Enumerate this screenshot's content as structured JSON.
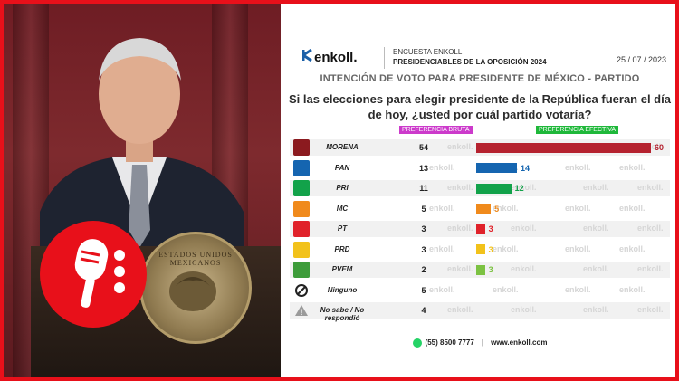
{
  "header": {
    "logo_text": "enkoll.",
    "line1": "ENCUESTA ENKOLL",
    "line2": "PRESIDENCIABLES DE LA OPOSICIÓN 2024",
    "date": "25 / 07 / 2023"
  },
  "seal_text": "ESTADOS UNIDOS MEXICANOS",
  "watermark": "enkoll.",
  "legend": {
    "bruta": "PREFERENCIA BRUTA",
    "efectiva": "PREFERENCIA EFECTIVA"
  },
  "footer": {
    "phone": "(55) 8500 7777",
    "url": "www.enkoll.com"
  },
  "colors": {
    "frame": "#e8101a",
    "morena": "#b5222f",
    "pan": "#1565b0",
    "pri": "#12a24a",
    "mc": "#f08a1c",
    "pt": "#e0222a",
    "prd": "#f2c21b",
    "pvem": "#7cc242"
  },
  "chart_data": {
    "type": "bar",
    "title": "INTENCIÓN DE VOTO PARA PRESIDENTE DE MÉXICO - PARTIDO",
    "subtitle": "Si las elecciones para elegir presidente de la República fueran el día de hoy, ¿usted por cuál partido votaría?",
    "categories": [
      "MORENA",
      "PAN",
      "PRI",
      "MC",
      "PT",
      "PRD",
      "PVEM",
      "Ninguno",
      "No sabe / No respondió"
    ],
    "series": [
      {
        "name": "PREFERENCIA BRUTA",
        "values": [
          54,
          13,
          11,
          5,
          3,
          3,
          2,
          5,
          4
        ]
      },
      {
        "name": "PREFERENCIA EFECTIVA",
        "values": [
          60,
          14,
          12,
          5,
          3,
          3,
          3,
          null,
          null
        ]
      }
    ],
    "bar_colors": [
      "#b5222f",
      "#1565b0",
      "#12a24a",
      "#f08a1c",
      "#e0222a",
      "#f2c21b",
      "#7cc242",
      null,
      null
    ],
    "icon_colors": [
      "#8b1a1f",
      "#1565b0",
      "#12a24a",
      "#f08a1c",
      "#e0222a",
      "#f2c21b",
      "#3d9c3a",
      "#222222",
      "#888888"
    ],
    "icon_glyphs": [
      "morena-logo",
      "pan-logo",
      "pri-logo",
      "mc-logo",
      "pt-logo",
      "prd-logo",
      "pvem-logo",
      "no-icon",
      "warning-icon"
    ],
    "xlim": [
      0,
      60
    ]
  }
}
